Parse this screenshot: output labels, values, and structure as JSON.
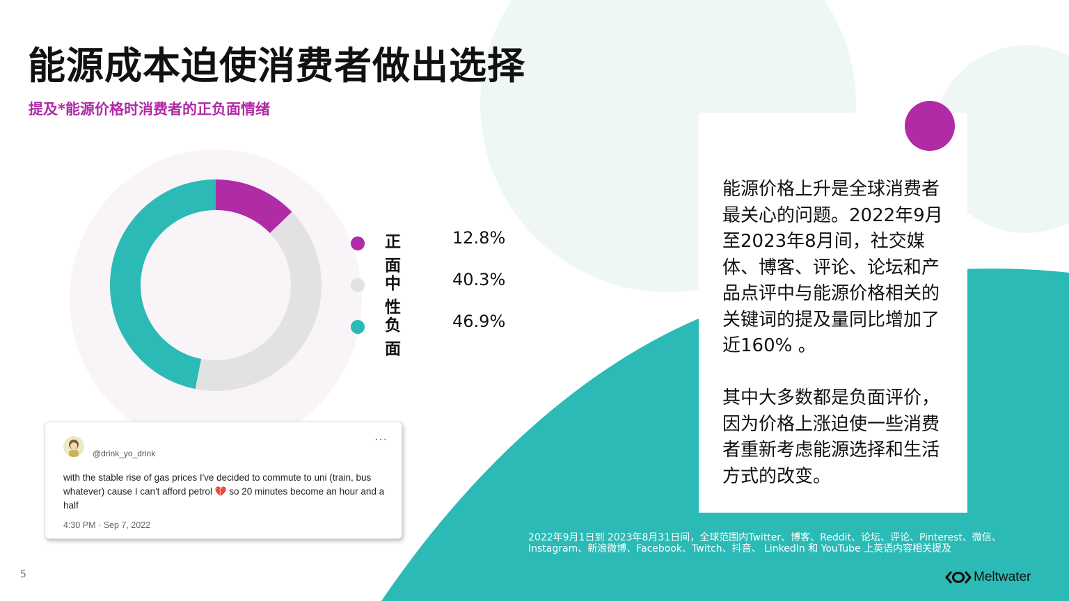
{
  "colors": {
    "accent": "#b12aa6",
    "teal": "#2bbab5",
    "light_gray": "#e2e2e2",
    "mint": "#eef7f6"
  },
  "header": {
    "title": "能源成本迫使消费者做出选择",
    "subtitle": "提及*能源价格时消费者的正负面情绪"
  },
  "chart_data": {
    "type": "pie",
    "donut": true,
    "title": "",
    "categories": [
      "正面",
      "中性",
      "负面"
    ],
    "values": [
      12.8,
      40.3,
      46.9
    ],
    "value_labels": [
      "12.8%",
      "40.3%",
      "46.9%"
    ],
    "colors": [
      "#b12aa6",
      "#e2e2e2",
      "#2bbab5"
    ],
    "legend_position": "right"
  },
  "tweet": {
    "handle": "@drink_yo_drink",
    "more_icon": "more-horizontal-icon",
    "text": "with the stable rise of gas prices I've decided to commute to uni (train, bus whatever) cause I can't afford petrol 💔 so 20 minutes become an hour and a half",
    "timestamp": "4:30 PM · Sep 7, 2022"
  },
  "card": {
    "paragraph1": "能源价格上升是全球消费者最关心的问题。2022年9月至2023年8月间，社交媒体、博客、评论、论坛和产品点评中与能源价格相关的关键词的提及量同比增加了近160% 。",
    "paragraph2": "其中大多数都是负面评价，因为价格上涨迫使一些消费者重新考虑能源选择和生活方式的改变。"
  },
  "footnote": "2022年9月1日到 2023年8月31日间，全球范围内Twitter、博客、Reddit、论坛、评论、Pinterest、微信、Instagram、新浪微博、Facebook、Twitch、抖音、 LinkedIn 和 YouTube 上英语内容相关提及",
  "footer": {
    "page_number": "5",
    "brand": "Meltwater"
  }
}
